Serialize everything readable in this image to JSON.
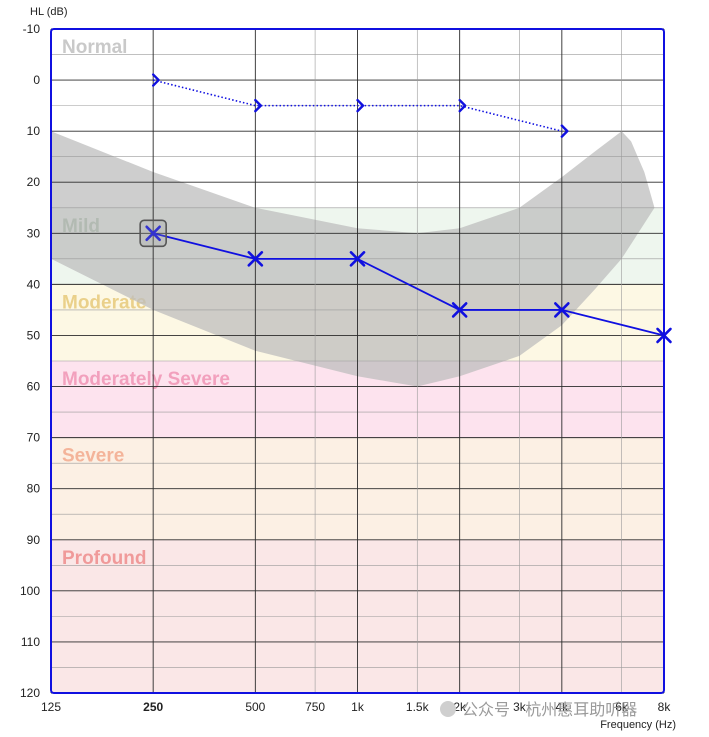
{
  "chart_data": {
    "type": "line",
    "ylabel": "HL (dB)",
    "xlabel": "Frequency (Hz)",
    "ylim": [
      -10,
      120
    ],
    "y_ticks": [
      -10,
      0,
      10,
      20,
      30,
      40,
      50,
      60,
      70,
      80,
      90,
      100,
      110,
      120
    ],
    "y_reversed": true,
    "x_scale": "log",
    "x_ticks": [
      {
        "value": 125,
        "label": "125",
        "bold": false
      },
      {
        "value": 250,
        "label": "250",
        "bold": true
      },
      {
        "value": 500,
        "label": "500",
        "bold": false
      },
      {
        "value": 750,
        "label": "750",
        "bold": false
      },
      {
        "value": 1000,
        "label": "1k",
        "bold": false
      },
      {
        "value": 1500,
        "label": "1.5k",
        "bold": false
      },
      {
        "value": 2000,
        "label": "2k",
        "bold": false
      },
      {
        "value": 3000,
        "label": "3k",
        "bold": false
      },
      {
        "value": 4000,
        "label": "4k",
        "bold": false
      },
      {
        "value": 6000,
        "label": "6k",
        "bold": false
      },
      {
        "value": 8000,
        "label": "8k",
        "bold": false
      }
    ],
    "bands": [
      {
        "label": "Normal",
        "from": -10,
        "to": 25,
        "fill": "#ffffff",
        "text_color": "#c9c9c9"
      },
      {
        "label": "Mild",
        "from": 25,
        "to": 40,
        "fill": "#eef6ee",
        "text_color": "#8fb08f"
      },
      {
        "label": "Moderate",
        "from": 40,
        "to": 55,
        "fill": "#fdf8e4",
        "text_color": "#ead08a"
      },
      {
        "label": "Moderately Severe",
        "from": 55,
        "to": 70,
        "fill": "#fde3ee",
        "text_color": "#f2a0bd"
      },
      {
        "label": "Severe",
        "from": 70,
        "to": 90,
        "fill": "#fcf0e4",
        "text_color": "#f4b49a"
      },
      {
        "label": "Profound",
        "from": 90,
        "to": 120,
        "fill": "#fae7e7",
        "text_color": "#f09a9a"
      }
    ],
    "speech_banana": {
      "color": "#bdbdbd",
      "upper": [
        [
          125,
          10
        ],
        [
          250,
          18
        ],
        [
          500,
          25
        ],
        [
          1000,
          29
        ],
        [
          1500,
          30
        ],
        [
          2000,
          29
        ],
        [
          3000,
          25
        ],
        [
          4000,
          19
        ],
        [
          5000,
          14
        ],
        [
          6000,
          10
        ],
        [
          6400,
          12
        ],
        [
          7000,
          18
        ],
        [
          7500,
          25
        ]
      ],
      "lower": [
        [
          125,
          35
        ],
        [
          250,
          45
        ],
        [
          500,
          53
        ],
        [
          1000,
          58
        ],
        [
          1500,
          60
        ],
        [
          2000,
          58
        ],
        [
          3000,
          54
        ],
        [
          4000,
          48
        ],
        [
          5000,
          41
        ],
        [
          6000,
          35
        ],
        [
          7500,
          25
        ]
      ]
    },
    "series": [
      {
        "symbol": "bracket",
        "line_style": "dotted",
        "color": "#1010e0",
        "x": [
          250,
          500,
          1000,
          2000,
          4000
        ],
        "y": [
          0,
          5,
          5,
          5,
          10
        ]
      },
      {
        "symbol": "x",
        "line_style": "solid",
        "color": "#1010e0",
        "x": [
          250,
          500,
          1000,
          2000,
          4000,
          8000
        ],
        "y": [
          30,
          35,
          35,
          45,
          45,
          50
        ]
      }
    ],
    "selected_point": {
      "x": 250,
      "y": 30
    },
    "watermark": "公众号 · 杭州惠耳助听器"
  }
}
